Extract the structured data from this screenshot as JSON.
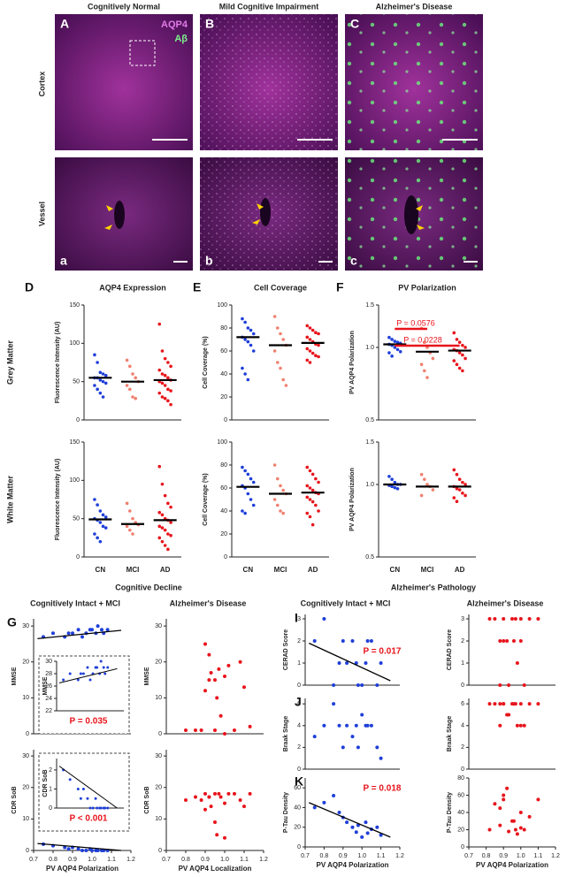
{
  "figure": {
    "columns": [
      "Cognitively Normal",
      "Mild Cognitive Impairment",
      "Alzheimer's Disease"
    ],
    "rows": [
      "Cortex",
      "Vessel"
    ],
    "panels_top": [
      "A",
      "B",
      "C"
    ],
    "panels_bottom": [
      "a",
      "b",
      "c"
    ],
    "stain_labels": [
      "AQP4",
      "Aβ"
    ],
    "row_labels": [
      "Grey Matter",
      "White Matter"
    ],
    "sections": [
      "Cognitive Decline",
      "Alzheimer's Pathology"
    ]
  },
  "chart_data": [
    {
      "type": "strip",
      "panel": "D",
      "title": "AQP4 Expression",
      "ylabel": "Fluorescence Intensity (AU)",
      "colors": [
        "#1f3fd8",
        "#f08070",
        "#e8141c"
      ],
      "groups": [
        [
          85,
          75,
          62,
          60,
          58,
          55,
          55,
          52,
          50,
          48,
          45,
          40,
          35,
          30
        ],
        [
          78,
          70,
          60,
          55,
          50,
          45,
          40,
          30,
          28
        ],
        [
          125,
          90,
          80,
          75,
          70,
          65,
          60,
          58,
          55,
          52,
          50,
          48,
          45,
          40,
          38,
          35,
          30,
          28,
          25,
          20
        ]
      ],
      "means": [
        55,
        50,
        52
      ],
      "ylim": [
        0,
        150
      ],
      "yticks": [
        0,
        50,
        100,
        150
      ]
    },
    {
      "type": "strip",
      "panel": "E",
      "title": "Cell Coverage",
      "ylabel": "Cell Coverage (%)",
      "colors": [
        "#1f3fd8",
        "#f08070",
        "#e8141c"
      ],
      "groups": [
        [
          88,
          85,
          80,
          78,
          75,
          72,
          70,
          68,
          65,
          60,
          45,
          40,
          35
        ],
        [
          90,
          80,
          75,
          70,
          65,
          60,
          50,
          45,
          35,
          30
        ],
        [
          82,
          80,
          78,
          76,
          75,
          72,
          70,
          68,
          66,
          65,
          62,
          60,
          58,
          56,
          55,
          52,
          50
        ]
      ],
      "means": [
        72,
        65,
        67
      ],
      "ylim": [
        0,
        100
      ],
      "yticks": [
        0,
        20,
        40,
        60,
        80,
        100
      ]
    },
    {
      "type": "strip",
      "panel": "F",
      "title": "PV Polarization",
      "ylabel": "PV AQP4 Polarization",
      "colors": [
        "#1f3fd8",
        "#f08070",
        "#e8141c"
      ],
      "groups": [
        [
          1.1,
          1.08,
          1.06,
          1.05,
          1.04,
          1.03,
          1.02,
          1.0,
          0.98,
          0.96,
          0.95,
          0.92
        ],
        [
          1.2,
          1.05,
          1.0,
          0.95,
          0.9,
          0.85,
          0.8,
          0.75
        ],
        [
          1.15,
          1.08,
          1.05,
          1.02,
          1.0,
          0.98,
          0.97,
          0.95,
          0.93,
          0.9,
          0.88,
          0.85,
          0.82,
          0.8
        ]
      ],
      "means": [
        1.03,
        0.96,
        0.97
      ],
      "ylim": [
        0.5,
        1.5
      ],
      "log": true,
      "yticks": [
        0.5,
        {
          "value": 1,
          "label": "1.0"
        },
        1.5
      ],
      "annotations": [
        "P = 0.0576",
        "P = 0.0228"
      ],
      "annotation_color": "#e8141c"
    },
    {
      "type": "strip",
      "ylabel": "Fluorescence Intensity (AU)",
      "categories": [
        "CN",
        "MCI",
        "AD"
      ],
      "colors": [
        "#1f3fd8",
        "#f08070",
        "#e8141c"
      ],
      "groups": [
        [
          75,
          68,
          60,
          55,
          52,
          50,
          48,
          45,
          40,
          38,
          30,
          25,
          20
        ],
        [
          70,
          60,
          50,
          45,
          42,
          40,
          35,
          30
        ],
        [
          118,
          95,
          80,
          70,
          65,
          58,
          55,
          50,
          48,
          45,
          40,
          38,
          35,
          30,
          28,
          25,
          20,
          15,
          10
        ]
      ],
      "means": [
        49,
        43,
        48
      ],
      "ylim": [
        0,
        150
      ],
      "yticks": [
        0,
        50,
        100,
        150
      ]
    },
    {
      "type": "strip",
      "ylabel": "Cell Coverage (%)",
      "categories": [
        "CN",
        "MCI",
        "AD"
      ],
      "colors": [
        "#1f3fd8",
        "#f08070",
        "#e8141c"
      ],
      "groups": [
        [
          78,
          75,
          72,
          68,
          65,
          62,
          60,
          55,
          50,
          45,
          40,
          38
        ],
        [
          80,
          68,
          62,
          58,
          55,
          50,
          45,
          40,
          38
        ],
        [
          78,
          75,
          72,
          68,
          65,
          62,
          60,
          58,
          56,
          55,
          52,
          50,
          48,
          45,
          40,
          38,
          35,
          28
        ]
      ],
      "means": [
        61,
        55,
        56
      ],
      "ylim": [
        0,
        100
      ],
      "yticks": [
        0,
        20,
        40,
        60,
        80,
        100
      ]
    },
    {
      "type": "strip",
      "ylabel": "PV AQP4 Polarization",
      "categories": [
        "CN",
        "MCI",
        "AD"
      ],
      "colors": [
        "#1f3fd8",
        "#f08070",
        "#e8141c"
      ],
      "groups": [
        [
          1.08,
          1.05,
          1.02,
          1.0,
          1.0,
          0.99,
          0.98,
          0.97,
          0.96
        ],
        [
          1.1,
          1.05,
          1.0,
          0.98,
          0.95,
          0.9
        ],
        [
          1.15,
          1.1,
          1.05,
          1.02,
          1.0,
          0.98,
          0.96,
          0.95,
          0.92,
          0.9,
          0.88,
          0.85
        ]
      ],
      "means": [
        1.0,
        0.98,
        0.98
      ],
      "ylim": [
        0.5,
        1.5
      ],
      "log": true,
      "yticks": [
        0.5,
        {
          "value": 1,
          "label": "1.0"
        },
        1.5
      ]
    },
    {
      "type": "scatter",
      "panel": "G",
      "title": "Cognitively Intact + MCI",
      "ylabel": "MMSE",
      "color": "#1f3fd8",
      "x": [
        0.75,
        0.8,
        0.86,
        0.88,
        0.9,
        0.93,
        0.95,
        0.97,
        0.99,
        1.0,
        1.02,
        1.03,
        1.05,
        1.06,
        1.08
      ],
      "y": [
        27,
        28,
        27,
        28,
        28,
        29,
        27,
        28,
        29,
        29,
        28,
        30,
        29,
        28,
        29
      ],
      "fit": {
        "x": [
          0.72,
          1.15
        ],
        "y": [
          26.5,
          28.8
        ]
      },
      "xlim": [
        0.7,
        1.2
      ],
      "ylim": [
        0,
        32
      ],
      "yticks": [
        0,
        10,
        20,
        30
      ],
      "inset": {
        "ylabel": "MMSE",
        "ylim": [
          22,
          30
        ],
        "yticks": [
          22,
          24,
          26,
          28,
          30
        ],
        "annotation": "P = 0.035",
        "annotation_color": "#e8141c"
      }
    },
    {
      "type": "scatter",
      "title": "Alzheimer's Disease",
      "ylabel": "MMSE",
      "color": "#e8141c",
      "x": [
        0.8,
        0.85,
        0.88,
        0.9,
        0.9,
        0.92,
        0.93,
        0.95,
        0.95,
        0.97,
        0.98,
        1.0,
        1.0,
        1.02,
        1.05,
        1.08,
        1.1,
        1.13,
        0.96,
        0.92
      ],
      "y": [
        1,
        1,
        1,
        25,
        12,
        22,
        17,
        15,
        1,
        18,
        5,
        0,
        16,
        19,
        1,
        20,
        13,
        2,
        10,
        15
      ],
      "xlim": [
        0.7,
        1.2
      ],
      "ylim": [
        0,
        32
      ],
      "yticks": [
        0,
        10,
        20,
        30
      ]
    },
    {
      "type": "scatter",
      "ylabel": "CDR SoB",
      "xlabel": "PV AQP4 Polarization",
      "color": "#1f3fd8",
      "x": [
        0.75,
        0.8,
        0.86,
        0.88,
        0.9,
        0.93,
        0.95,
        0.97,
        0.99,
        1.0,
        1.02,
        1.03,
        1.05,
        1.06,
        1.08
      ],
      "y": [
        2,
        1.5,
        1,
        0.5,
        1,
        0.5,
        0,
        0,
        0.5,
        0,
        0,
        0,
        0,
        0,
        0
      ],
      "fit": {
        "x": [
          0.72,
          1.15
        ],
        "y": [
          2.2,
          0
        ]
      },
      "xlim": [
        0.7,
        1.2
      ],
      "xticks": [
        0.7,
        0.8,
        0.9,
        {
          "value": 1,
          "label": "1.0"
        },
        1.1,
        1.2
      ],
      "ylim": [
        0,
        32
      ],
      "yticks": [
        0,
        10,
        20,
        30
      ],
      "inset": {
        "ylabel": "CDR SoB",
        "ylim": [
          0,
          2.6
        ],
        "yticks": [
          0,
          1,
          2
        ],
        "annotation": "P < 0.001",
        "annotation_color": "#e8141c"
      }
    },
    {
      "type": "scatter",
      "ylabel": "CDR SoB",
      "xlabel": "PV AQP4 Localization",
      "color": "#e8141c",
      "x": [
        0.8,
        0.85,
        0.88,
        0.9,
        0.9,
        0.92,
        0.93,
        0.95,
        0.95,
        0.97,
        0.98,
        1.0,
        1.0,
        1.02,
        1.05,
        1.08,
        1.1,
        1.13,
        0.96,
        0.92
      ],
      "y": [
        16,
        17,
        16,
        18,
        13,
        17,
        14,
        18,
        9,
        18,
        17,
        4,
        15,
        18,
        18,
        16,
        14,
        18,
        5,
        17
      ],
      "xlim": [
        0.7,
        1.2
      ],
      "xticks": [
        0.7,
        0.8,
        0.9,
        {
          "value": 1,
          "label": "1.0"
        },
        1.1,
        1.2
      ],
      "ylim": [
        0,
        32
      ],
      "yticks": [
        0,
        10,
        20,
        30
      ]
    },
    {
      "type": "scatter",
      "panel": "I",
      "title": "Cognitively Intact + MCI",
      "ylabel": "CERAD Score",
      "color": "#1f3fd8",
      "x": [
        0.75,
        0.8,
        0.85,
        0.9,
        0.92,
        0.95,
        0.97,
        1.0,
        1.02,
        1.05,
        1.08,
        1.1,
        0.88,
        0.98,
        1.03
      ],
      "y": [
        2,
        3,
        0,
        2,
        1,
        2,
        1,
        0,
        1,
        2,
        0,
        1,
        1,
        0,
        2
      ],
      "fit": {
        "x": [
          0.72,
          1.15
        ],
        "y": [
          1.9,
          0.2
        ]
      },
      "annotation": "P = 0.017",
      "annotation_color": "#e8141c",
      "xlim": [
        0.7,
        1.2
      ],
      "ylim": [
        0,
        3.2
      ],
      "yticks": [
        0,
        1,
        2,
        3
      ]
    },
    {
      "type": "scatter",
      "title": "Alzheimer's Disease",
      "ylabel": "CERAD Score",
      "color": "#e8141c",
      "x": [
        0.82,
        0.85,
        0.88,
        0.9,
        0.92,
        0.95,
        0.97,
        0.98,
        1.0,
        1.05,
        1.1,
        0.93,
        0.96,
        0.9,
        1.0,
        1.02,
        0.88
      ],
      "y": [
        3,
        3,
        2,
        3,
        2,
        3,
        3,
        1,
        3,
        3,
        3,
        0,
        2,
        2,
        2,
        0,
        0
      ],
      "xlim": [
        0.7,
        1.2
      ],
      "ylim": [
        0,
        3.2
      ],
      "yticks": [
        0,
        1,
        2,
        3
      ]
    },
    {
      "type": "scatter",
      "panel": "J",
      "ylabel": "Braak Stage",
      "color": "#1f3fd8",
      "x": [
        0.75,
        0.8,
        0.85,
        0.9,
        0.92,
        0.95,
        0.97,
        1.0,
        1.02,
        1.05,
        1.08,
        1.1,
        0.88,
        0.98,
        1.03
      ],
      "y": [
        3,
        4,
        6,
        2,
        4,
        3,
        4,
        5,
        4,
        4,
        2,
        1,
        4,
        2,
        4
      ],
      "xlim": [
        0.7,
        1.2
      ],
      "ylim": [
        0,
        6.5
      ],
      "yticks": [
        0,
        2,
        4,
        6
      ]
    },
    {
      "type": "scatter",
      "ylabel": "Braak Stage",
      "color": "#e8141c",
      "x": [
        0.82,
        0.85,
        0.88,
        0.9,
        0.92,
        0.95,
        0.97,
        0.98,
        1.0,
        1.05,
        1.1,
        0.93,
        0.96,
        0.9,
        1.0,
        1.02,
        0.88
      ],
      "y": [
        6,
        6,
        4,
        6,
        5,
        6,
        6,
        4,
        4,
        6,
        6,
        5,
        6,
        6,
        6,
        4,
        6
      ],
      "xlim": [
        0.7,
        1.2
      ],
      "ylim": [
        0,
        6.5
      ],
      "yticks": [
        0,
        2,
        4,
        6
      ]
    },
    {
      "type": "scatter",
      "panel": "K",
      "ylabel": "P-Tau Density",
      "xlabel": "PV AQP4 Polarization",
      "color": "#1f3fd8",
      "x": [
        0.75,
        0.8,
        0.85,
        0.9,
        0.92,
        0.95,
        0.97,
        1.0,
        1.02,
        1.05,
        1.08,
        1.1,
        0.88,
        0.98,
        1.03
      ],
      "y": [
        40,
        45,
        52,
        30,
        25,
        20,
        15,
        10,
        25,
        18,
        20,
        12,
        35,
        22,
        14
      ],
      "fit": {
        "x": [
          0.72,
          1.15
        ],
        "y": [
          45,
          10
        ]
      },
      "annotation": "P = 0.018",
      "annotation_color": "#e8141c",
      "xlim": [
        0.7,
        1.2
      ],
      "xticks": [
        0.7,
        0.8,
        0.9,
        {
          "value": 1,
          "label": "1.0"
        },
        1.1,
        1.2
      ],
      "ylim": [
        0,
        70
      ],
      "yticks": [
        0,
        20,
        40,
        60
      ]
    },
    {
      "type": "scatter",
      "ylabel": "P-Tau Density",
      "xlabel": "PV AQP4 Polarization",
      "color": "#e8141c",
      "x": [
        0.82,
        0.85,
        0.88,
        0.9,
        0.92,
        0.95,
        0.97,
        0.98,
        1.0,
        1.05,
        1.1,
        0.93,
        0.96,
        0.9,
        1.0,
        1.02,
        0.88
      ],
      "y": [
        20,
        50,
        25,
        55,
        68,
        30,
        20,
        15,
        40,
        35,
        55,
        18,
        30,
        60,
        22,
        20,
        45
      ],
      "xlim": [
        0.7,
        1.2
      ],
      "xticks": [
        0.7,
        0.8,
        0.9,
        {
          "value": 1,
          "label": "1.0"
        },
        1.1,
        1.2
      ],
      "ylim": [
        0,
        80
      ],
      "yticks": [
        0,
        20,
        40,
        60,
        80
      ]
    }
  ]
}
